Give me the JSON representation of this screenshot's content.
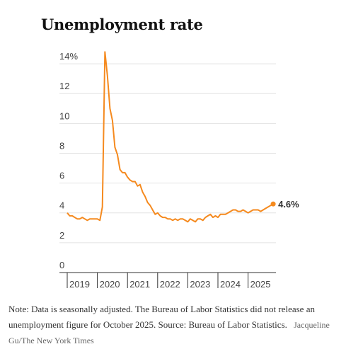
{
  "chart_data": {
    "type": "line",
    "title": "Unemployment rate",
    "ylim": [
      0,
      15
    ],
    "yticks": [
      {
        "value": 0,
        "label": "0"
      },
      {
        "value": 2,
        "label": "2"
      },
      {
        "value": 4,
        "label": "4"
      },
      {
        "value": 6,
        "label": "6"
      },
      {
        "value": 8,
        "label": "8"
      },
      {
        "value": 10,
        "label": "10"
      },
      {
        "value": 12,
        "label": "12"
      },
      {
        "value": 14,
        "label": "14%"
      }
    ],
    "xticks": [
      "2019",
      "2020",
      "2021",
      "2022",
      "2023",
      "2024",
      "2025"
    ],
    "grid": true,
    "line_color": "#f58a1f",
    "last_label": "4.6%",
    "series": [
      {
        "x": [
          "2019-01",
          "2019-02",
          "2019-03",
          "2019-04",
          "2019-05",
          "2019-06",
          "2019-07",
          "2019-08",
          "2019-09",
          "2019-10",
          "2019-11",
          "2019-12",
          "2020-01",
          "2020-02",
          "2020-03",
          "2020-04",
          "2020-05",
          "2020-06",
          "2020-07",
          "2020-08",
          "2020-09",
          "2020-10",
          "2020-11",
          "2020-12",
          "2021-01",
          "2021-02",
          "2021-03",
          "2021-04",
          "2021-05",
          "2021-06",
          "2021-07",
          "2021-08",
          "2021-09",
          "2021-10",
          "2021-11",
          "2021-12",
          "2022-01",
          "2022-02",
          "2022-03",
          "2022-04",
          "2022-05",
          "2022-06",
          "2022-07",
          "2022-08",
          "2022-09",
          "2022-10",
          "2022-11",
          "2022-12",
          "2023-01",
          "2023-02",
          "2023-03",
          "2023-04",
          "2023-05",
          "2023-06",
          "2023-07",
          "2023-08",
          "2023-09",
          "2023-10",
          "2023-11",
          "2023-12",
          "2024-01",
          "2024-02",
          "2024-03",
          "2024-04",
          "2024-05",
          "2024-06",
          "2024-07",
          "2024-08",
          "2024-09",
          "2024-10",
          "2024-11",
          "2024-12",
          "2025-01",
          "2025-02",
          "2025-03",
          "2025-04",
          "2025-05",
          "2025-06",
          "2025-07",
          "2025-08",
          "2025-09",
          "2025-11"
        ],
        "y": [
          4.0,
          3.8,
          3.8,
          3.7,
          3.6,
          3.6,
          3.7,
          3.6,
          3.5,
          3.6,
          3.6,
          3.6,
          3.6,
          3.5,
          4.4,
          14.8,
          13.2,
          11.0,
          10.2,
          8.4,
          7.9,
          6.9,
          6.7,
          6.7,
          6.4,
          6.2,
          6.1,
          6.1,
          5.8,
          5.9,
          5.4,
          5.1,
          4.7,
          4.5,
          4.2,
          3.9,
          4.0,
          3.8,
          3.7,
          3.7,
          3.6,
          3.6,
          3.5,
          3.6,
          3.5,
          3.6,
          3.6,
          3.5,
          3.4,
          3.6,
          3.5,
          3.4,
          3.6,
          3.6,
          3.5,
          3.7,
          3.8,
          3.9,
          3.7,
          3.8,
          3.7,
          3.9,
          3.9,
          3.9,
          4.0,
          4.1,
          4.2,
          4.2,
          4.1,
          4.1,
          4.2,
          4.1,
          4.0,
          4.1,
          4.2,
          4.2,
          4.2,
          4.1,
          4.2,
          4.3,
          4.4,
          4.6
        ]
      }
    ]
  },
  "note": {
    "text": "Note: Data is seasonally adjusted. The Bureau of Labor Statistics did not release an unemployment figure for October 2025. Source: Bureau of Labor Statistics.",
    "credit": "Jacqueline Gu/The New York Times"
  }
}
